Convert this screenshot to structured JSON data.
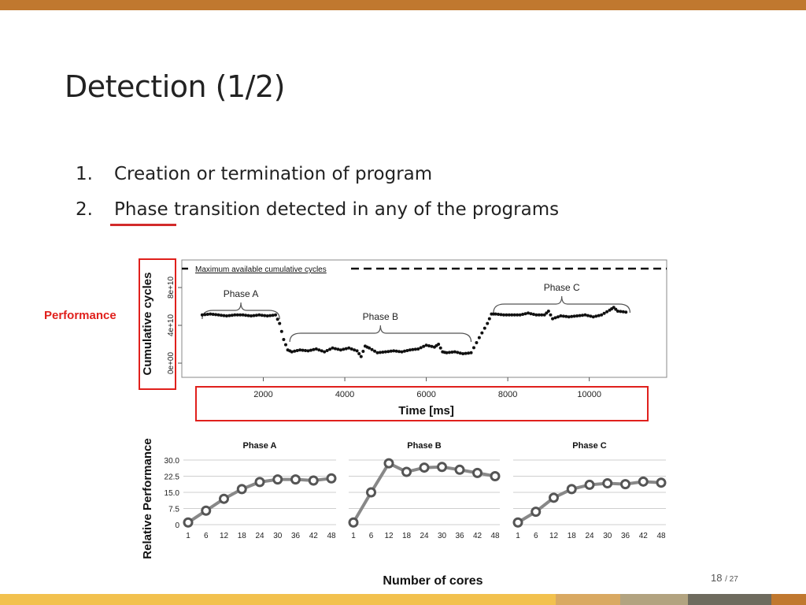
{
  "slide": {
    "title": "Detection (1/2)",
    "items": [
      {
        "num": "1.",
        "text": "Creation or termination of program"
      },
      {
        "num": "2.",
        "text": "Phase transition detected in any of the programs"
      }
    ],
    "performance_label": "Performance",
    "page": "18",
    "page_total": "/ 27",
    "colors": {
      "accent": "#c0782f",
      "highlight": "#e0201c",
      "footer": [
        "#f2c14e",
        "#d9a962",
        "#b2a380",
        "#6e6b5e",
        "#c0782f"
      ]
    }
  },
  "chart_data": [
    {
      "type": "scatter",
      "ylabel": "Cumulative cycles",
      "xlabel": "Time [ms]",
      "x_ticks": [
        "2000",
        "4000",
        "6000",
        "8000",
        "10000"
      ],
      "y_ticks": [
        "0e+00",
        "4e+10",
        "8e+10"
      ],
      "xlim": [
        0,
        11900
      ],
      "ylim": [
        0,
        100000000000
      ],
      "reference_line": {
        "label": "Maximum available cumulative cycles",
        "value": 100000000000
      },
      "annotations": [
        "Phase A",
        "Phase B",
        "Phase C"
      ],
      "phases": [
        {
          "label": "Phase A",
          "x_start": 500,
          "x_end": 2400
        },
        {
          "label": "Phase B",
          "x_start": 2650,
          "x_end": 7100
        },
        {
          "label": "Phase C",
          "x_start": 7650,
          "x_end": 11000
        }
      ],
      "x": [
        500,
        700,
        900,
        1100,
        1300,
        1500,
        1700,
        1900,
        2100,
        2300,
        2400,
        2500,
        2600,
        2700,
        2900,
        3100,
        3300,
        3500,
        3700,
        3900,
        4100,
        4300,
        4400,
        4500,
        4600,
        4800,
        5000,
        5200,
        5400,
        5600,
        5800,
        6000,
        6200,
        6300,
        6400,
        6500,
        6700,
        6900,
        7100,
        7300,
        7500,
        7600,
        7700,
        7900,
        8100,
        8300,
        8500,
        8700,
        8900,
        9000,
        9100,
        9300,
        9500,
        9700,
        9900,
        10100,
        10300,
        10500,
        10600,
        10700,
        10900
      ],
      "y": [
        51000000000,
        52000000000,
        51000000000,
        50000000000,
        51000000000,
        51000000000,
        50000000000,
        51000000000,
        50000000000,
        51000000000,
        42000000000,
        25000000000,
        14000000000,
        12000000000,
        14000000000,
        13000000000,
        15000000000,
        12000000000,
        16000000000,
        14000000000,
        16000000000,
        13000000000,
        7000000000,
        18000000000,
        16000000000,
        11000000000,
        12000000000,
        13000000000,
        12000000000,
        14000000000,
        15000000000,
        19000000000,
        17000000000,
        20000000000,
        12000000000,
        11000000000,
        12000000000,
        10000000000,
        11000000000,
        27000000000,
        42000000000,
        52000000000,
        52000000000,
        51000000000,
        51000000000,
        51000000000,
        53000000000,
        51000000000,
        51000000000,
        55000000000,
        47000000000,
        50000000000,
        49000000000,
        50000000000,
        51000000000,
        49000000000,
        51000000000,
        56000000000,
        59000000000,
        55000000000,
        54000000000
      ]
    },
    {
      "type": "line",
      "title": "Phase A",
      "categories": [
        "1",
        "6",
        "12",
        "18",
        "24",
        "30",
        "36",
        "42",
        "48"
      ],
      "values": [
        1,
        6.5,
        12,
        16.5,
        19.8,
        21,
        21,
        20.5,
        21.5
      ],
      "y_ticks": [
        "0",
        "7.5",
        "15.0",
        "22.5",
        "30.0"
      ],
      "ylim": [
        0,
        30
      ],
      "ylabel": "Relative Performance",
      "xlabel": "Number of cores"
    },
    {
      "type": "line",
      "title": "Phase B",
      "categories": [
        "1",
        "6",
        "12",
        "18",
        "24",
        "30",
        "36",
        "42",
        "48"
      ],
      "values": [
        1,
        15,
        28.5,
        24.5,
        26.5,
        26.8,
        25.5,
        24,
        22.5
      ],
      "ylim": [
        0,
        30
      ]
    },
    {
      "type": "line",
      "title": "Phase C",
      "categories": [
        "1",
        "6",
        "12",
        "18",
        "24",
        "30",
        "36",
        "42",
        "48"
      ],
      "values": [
        1,
        6,
        12.5,
        16.5,
        18.5,
        19.2,
        18.8,
        20,
        19.5
      ],
      "ylim": [
        0,
        30
      ]
    }
  ]
}
